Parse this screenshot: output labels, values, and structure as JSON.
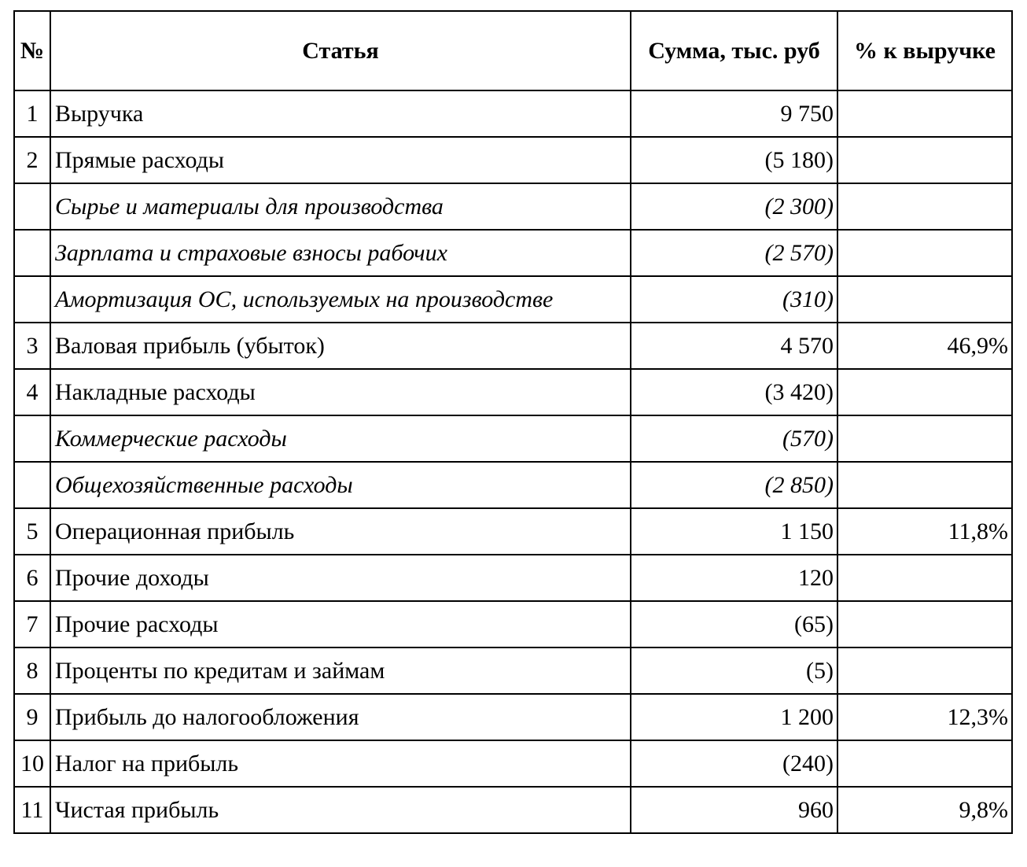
{
  "table": {
    "headers": {
      "no": "№",
      "item": "Статья",
      "amount": "Сумма, тыс. руб",
      "percent": "% к выручке"
    },
    "rows": [
      {
        "no": "1",
        "item": "Выручка",
        "amount": "9 750",
        "percent": "",
        "sub": false
      },
      {
        "no": "2",
        "item": "Прямые расходы",
        "amount": "(5 180)",
        "percent": "",
        "sub": false
      },
      {
        "no": "",
        "item": "Сырье и материалы для производства",
        "amount": "(2 300)",
        "percent": "",
        "sub": true
      },
      {
        "no": "",
        "item": "Зарплата и страховые взносы рабочих",
        "amount": "(2 570)",
        "percent": "",
        "sub": true
      },
      {
        "no": "",
        "item": "Амортизация ОС, используемых на производстве",
        "amount": "(310)",
        "percent": "",
        "sub": true
      },
      {
        "no": "3",
        "item": "Валовая прибыль (убыток)",
        "amount": "4 570",
        "percent": "46,9%",
        "sub": false
      },
      {
        "no": "4",
        "item": "Накладные расходы",
        "amount": "(3 420)",
        "percent": "",
        "sub": false
      },
      {
        "no": "",
        "item": "Коммерческие расходы",
        "amount": "(570)",
        "percent": "",
        "sub": true
      },
      {
        "no": "",
        "item": "Общехозяйственные расходы",
        "amount": "(2 850)",
        "percent": "",
        "sub": true
      },
      {
        "no": "5",
        "item": "Операционная прибыль",
        "amount": "1 150",
        "percent": "11,8%",
        "sub": false
      },
      {
        "no": "6",
        "item": "Прочие доходы",
        "amount": "120",
        "percent": "",
        "sub": false
      },
      {
        "no": "7",
        "item": "Прочие расходы",
        "amount": "(65)",
        "percent": "",
        "sub": false
      },
      {
        "no": "8",
        "item": "Проценты по кредитам и займам",
        "amount": "(5)",
        "percent": "",
        "sub": false
      },
      {
        "no": "9",
        "item": "Прибыль до налогообложения",
        "amount": "1 200",
        "percent": "12,3%",
        "sub": false
      },
      {
        "no": "10",
        "item": "Налог на прибыль",
        "amount": "(240)",
        "percent": "",
        "sub": false
      },
      {
        "no": "11",
        "item": "Чистая прибыль",
        "amount": "960",
        "percent": "9,8%",
        "sub": false
      }
    ]
  }
}
